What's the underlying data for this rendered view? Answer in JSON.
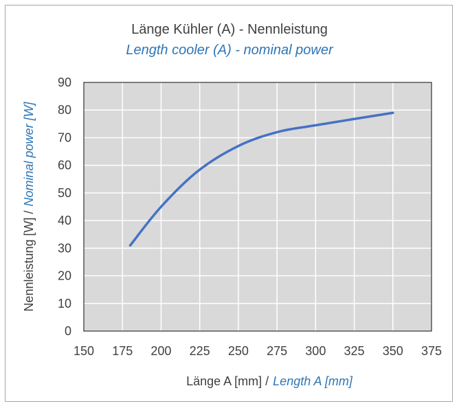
{
  "chart_data": {
    "type": "line",
    "title": "Länge Kühler (A) - Nennleistung",
    "subtitle": "Length cooler (A) - nominal power",
    "xlabel": "Länge A [mm] /",
    "xlabel_en": "Length A [mm]",
    "ylabel": "Nennleistung [W] /",
    "ylabel_en": "Nominal power [W]",
    "xlim": [
      150,
      375
    ],
    "ylim": [
      0,
      90
    ],
    "x_ticks": [
      150,
      175,
      200,
      225,
      250,
      275,
      300,
      325,
      350,
      375
    ],
    "y_ticks": [
      0,
      10,
      20,
      30,
      40,
      50,
      60,
      70,
      80,
      90
    ],
    "grid": true,
    "series": [
      {
        "x": [
          180,
          200,
          224,
          250,
          275,
          300,
          350
        ],
        "y": [
          31,
          45,
          58,
          67,
          72,
          74.5,
          79
        ]
      }
    ],
    "colors": {
      "line": "#4472c4",
      "plot_background": "#d9d9d9",
      "gridline": "#ffffff",
      "accent_text": "#2e75b6"
    }
  }
}
